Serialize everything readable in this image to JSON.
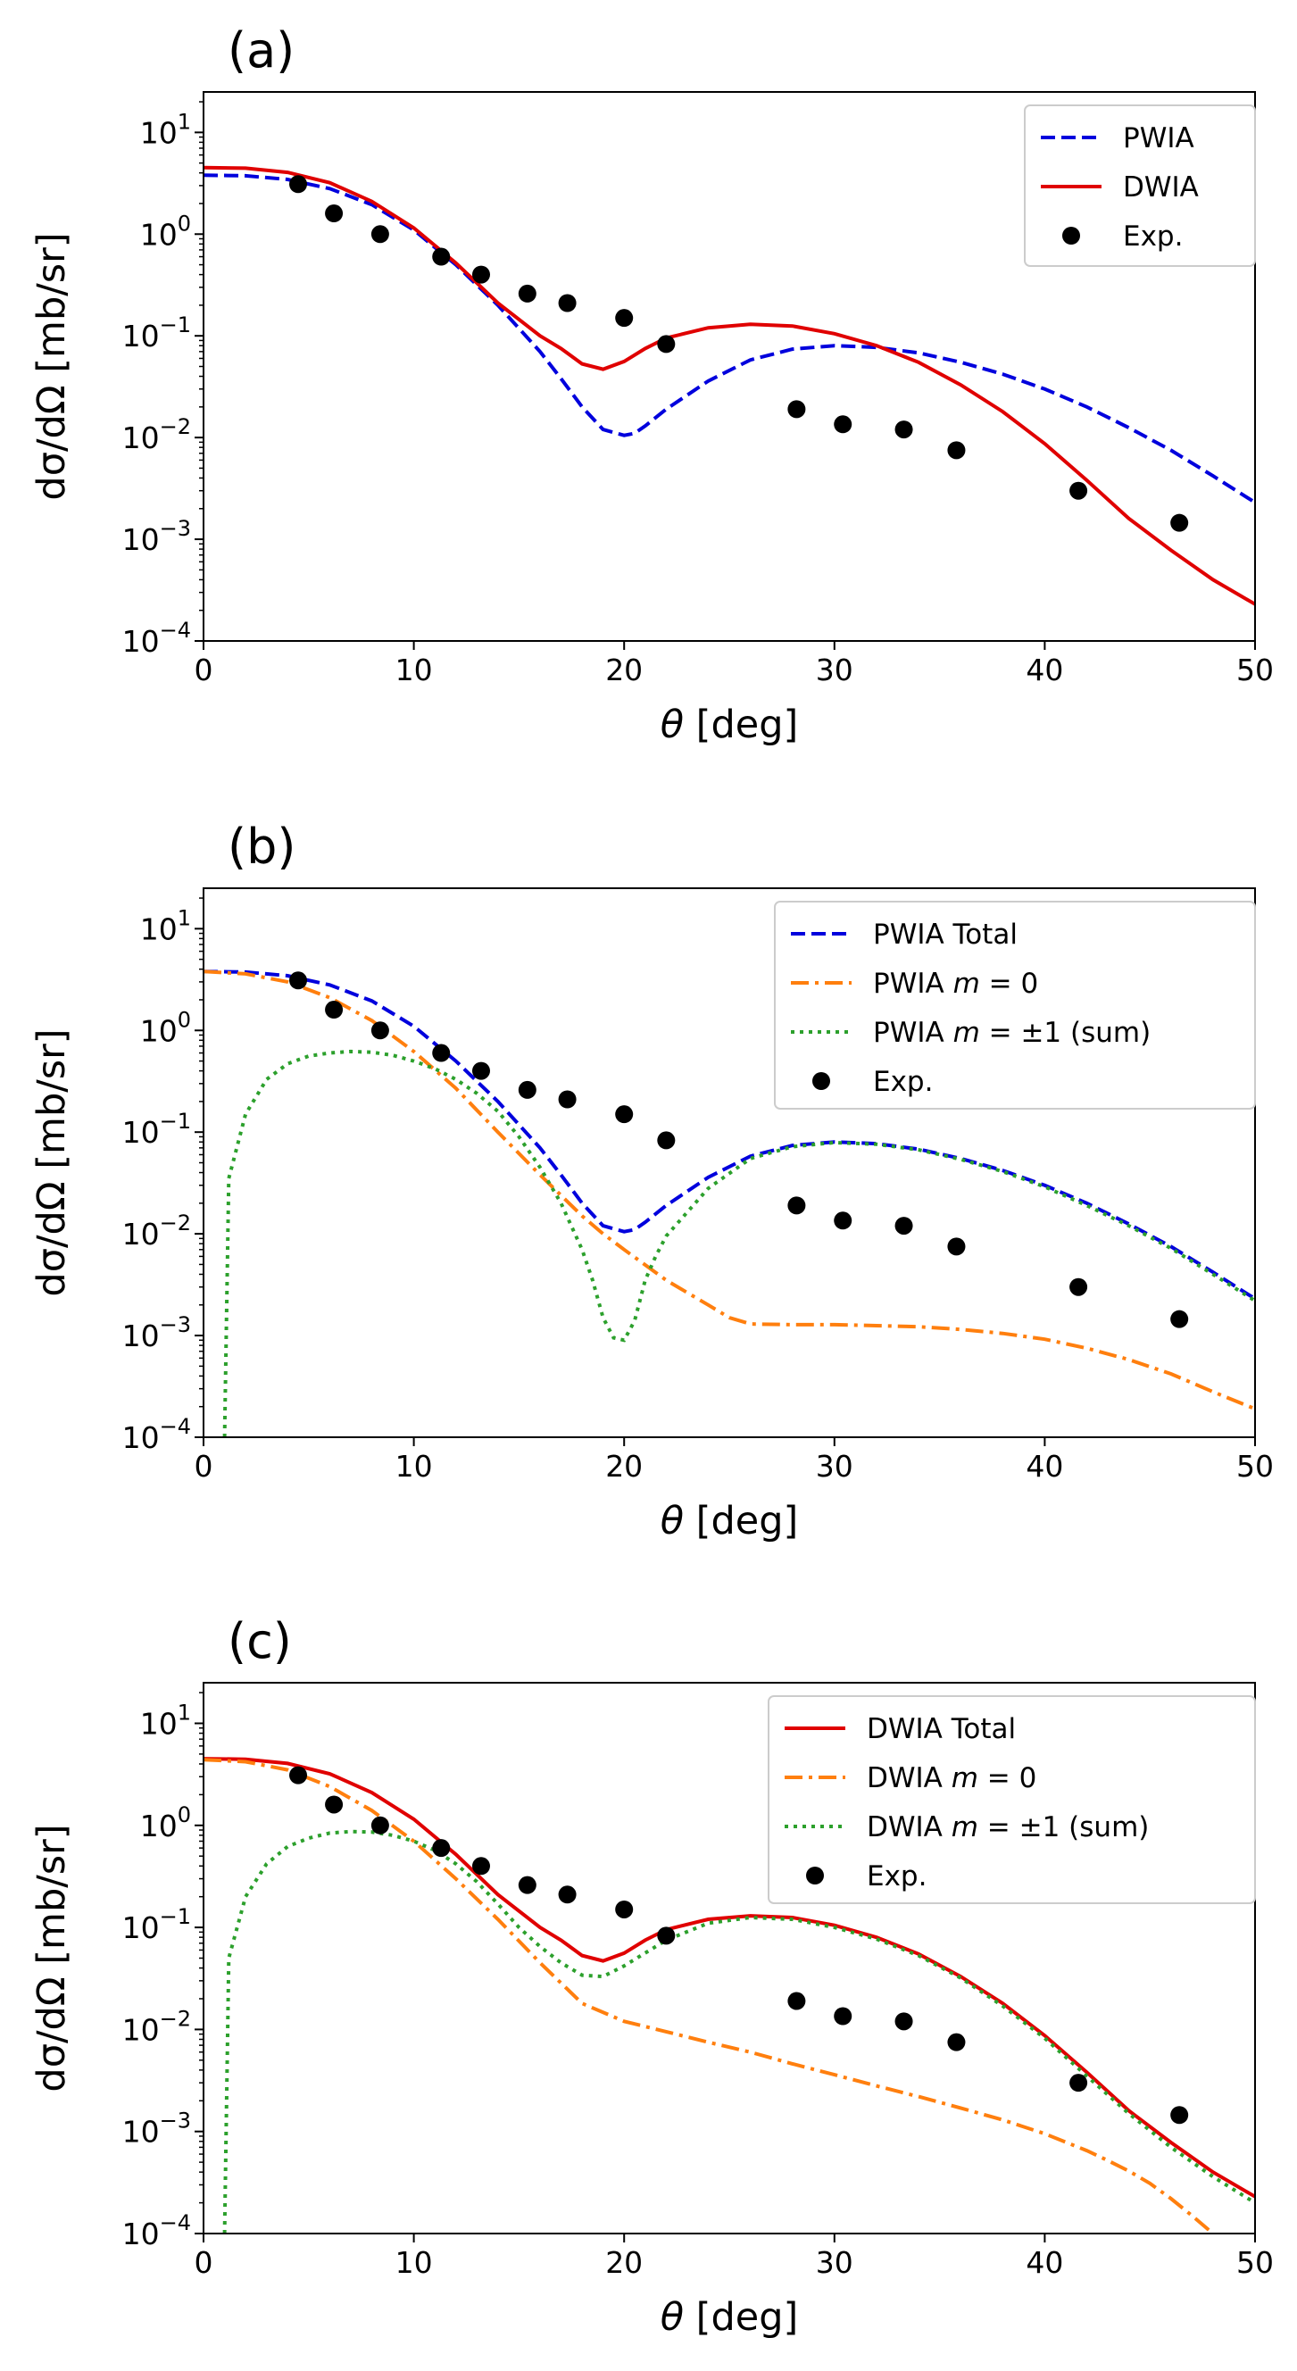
{
  "colors": {
    "pwia": "#0000dd",
    "dwia": "#e00000",
    "m0": "#ff7f0e",
    "m1": "#2ca02c",
    "exp": "#000000"
  },
  "chart_data": [
    {
      "type": "line",
      "panel_label": "(a)",
      "xlabel_var": "θ",
      "xlabel_unit": " [deg]",
      "ylabel": "dσ/dΩ [mb/sr]",
      "xlim": [
        0,
        50
      ],
      "ylim": [
        0.0001,
        25
      ],
      "yscale": "log",
      "xticks": [
        0,
        10,
        20,
        30,
        40,
        50
      ],
      "yticks": [
        {
          "base": "10",
          "exp": "1",
          "value": 10
        },
        {
          "base": "10",
          "exp": "0",
          "value": 1
        },
        {
          "base": "10",
          "exp": "−1",
          "value": 0.1
        },
        {
          "base": "10",
          "exp": "−2",
          "value": 0.01
        },
        {
          "base": "10",
          "exp": "−3",
          "value": 0.001
        },
        {
          "base": "10",
          "exp": "−4",
          "value": 0.0001
        }
      ],
      "legend_position": "top-right",
      "series": [
        {
          "name": "PWIA",
          "label_prefix": "PWIA",
          "label_math": "",
          "label_suffix": "",
          "style": "dashed",
          "color_key": "pwia",
          "x": [
            0,
            2,
            4,
            6,
            8,
            10,
            12,
            14,
            16,
            17,
            18,
            19,
            20,
            20.5,
            21,
            22,
            24,
            26,
            28,
            30,
            32,
            34,
            36,
            38,
            40,
            42,
            44,
            46,
            48,
            50
          ],
          "y": [
            3.8,
            3.75,
            3.45,
            2.8,
            1.95,
            1.1,
            0.5,
            0.2,
            0.07,
            0.038,
            0.02,
            0.012,
            0.0105,
            0.011,
            0.013,
            0.019,
            0.036,
            0.058,
            0.074,
            0.08,
            0.077,
            0.068,
            0.055,
            0.042,
            0.03,
            0.02,
            0.0125,
            0.0075,
            0.0042,
            0.0023
          ]
        },
        {
          "name": "DWIA",
          "label_prefix": "DWIA",
          "label_math": "",
          "label_suffix": "",
          "style": "solid",
          "color_key": "dwia",
          "x": [
            0,
            2,
            4,
            6,
            8,
            10,
            12,
            14,
            16,
            17,
            18,
            19,
            20,
            21,
            22,
            24,
            26,
            28,
            30,
            32,
            34,
            36,
            38,
            40,
            42,
            44,
            46,
            48,
            50
          ],
          "y": [
            4.5,
            4.45,
            4.05,
            3.2,
            2.1,
            1.15,
            0.52,
            0.21,
            0.1,
            0.075,
            0.053,
            0.047,
            0.056,
            0.075,
            0.095,
            0.12,
            0.13,
            0.125,
            0.105,
            0.08,
            0.055,
            0.033,
            0.018,
            0.0087,
            0.0038,
            0.0016,
            0.00078,
            0.0004,
            0.00023
          ]
        }
      ],
      "exp": {
        "name": "Exp.",
        "x": [
          4.5,
          6.2,
          8.4,
          11.3,
          13.2,
          15.4,
          17.3,
          20.0,
          22.0,
          28.2,
          30.4,
          33.3,
          35.8,
          41.6,
          46.4
        ],
        "y": [
          3.1,
          1.6,
          1.0,
          0.6,
          0.4,
          0.26,
          0.21,
          0.15,
          0.083,
          0.019,
          0.0135,
          0.012,
          0.0075,
          0.003,
          0.00145
        ]
      }
    },
    {
      "type": "line",
      "panel_label": "(b)",
      "xlabel_var": "θ",
      "xlabel_unit": " [deg]",
      "ylabel": "dσ/dΩ [mb/sr]",
      "xlim": [
        0,
        50
      ],
      "ylim": [
        0.0001,
        25
      ],
      "yscale": "log",
      "xticks": [
        0,
        10,
        20,
        30,
        40,
        50
      ],
      "yticks": [
        {
          "base": "10",
          "exp": "1",
          "value": 10
        },
        {
          "base": "10",
          "exp": "0",
          "value": 1
        },
        {
          "base": "10",
          "exp": "−1",
          "value": 0.1
        },
        {
          "base": "10",
          "exp": "−2",
          "value": 0.01
        },
        {
          "base": "10",
          "exp": "−3",
          "value": 0.001
        },
        {
          "base": "10",
          "exp": "−4",
          "value": 0.0001
        }
      ],
      "legend_position": "top-right",
      "series": [
        {
          "name": "PWIA Total",
          "label_prefix": "PWIA Total",
          "label_math": "",
          "label_suffix": "",
          "style": "dashed",
          "color_key": "pwia",
          "x": [
            0,
            2,
            4,
            6,
            8,
            10,
            12,
            14,
            16,
            17,
            18,
            19,
            20,
            20.5,
            21,
            22,
            24,
            26,
            28,
            30,
            32,
            34,
            36,
            38,
            40,
            42,
            44,
            46,
            48,
            50
          ],
          "y": [
            3.8,
            3.75,
            3.45,
            2.8,
            1.95,
            1.1,
            0.5,
            0.2,
            0.07,
            0.038,
            0.02,
            0.012,
            0.0105,
            0.011,
            0.013,
            0.019,
            0.036,
            0.058,
            0.074,
            0.08,
            0.077,
            0.068,
            0.055,
            0.042,
            0.03,
            0.02,
            0.0125,
            0.0075,
            0.0042,
            0.0023
          ]
        },
        {
          "name": "PWIA m = 0",
          "label_prefix": "PWIA ",
          "label_math": "m",
          "label_suffix": " = 0",
          "style": "dashdot",
          "color_key": "m0",
          "x": [
            0,
            2,
            4,
            6,
            8,
            10,
            12,
            14,
            16,
            18,
            19,
            20,
            22,
            24,
            25,
            26,
            28,
            30,
            32,
            34,
            36,
            38,
            40,
            42,
            44,
            46,
            48,
            50
          ],
          "y": [
            3.8,
            3.6,
            3.0,
            2.1,
            1.25,
            0.62,
            0.27,
            0.1,
            0.038,
            0.015,
            0.01,
            0.007,
            0.0035,
            0.002,
            0.0015,
            0.0013,
            0.00128,
            0.00128,
            0.00125,
            0.00122,
            0.00115,
            0.00105,
            0.00092,
            0.00075,
            0.00058,
            0.00042,
            0.00028,
            0.00019
          ]
        },
        {
          "name": "PWIA m = ±1 (sum)",
          "label_prefix": "PWIA ",
          "label_math": "m",
          "label_suffix": " = ±1 (sum)",
          "style": "dotted",
          "color_key": "m1",
          "x": [
            1,
            1.2,
            2,
            3,
            4,
            5,
            6,
            7,
            8,
            9,
            10,
            11,
            12,
            13,
            14,
            15,
            16,
            17,
            18,
            18.5,
            19,
            19.5,
            20,
            20.5,
            21,
            21.5,
            22,
            24,
            26,
            28,
            30,
            32,
            34,
            36,
            38,
            40,
            42,
            44,
            46,
            48,
            50
          ],
          "y": [
            0.0001,
            0.035,
            0.15,
            0.33,
            0.47,
            0.56,
            0.6,
            0.62,
            0.61,
            0.57,
            0.5,
            0.42,
            0.33,
            0.24,
            0.16,
            0.09,
            0.045,
            0.02,
            0.007,
            0.0035,
            0.0015,
            0.00095,
            0.0009,
            0.0014,
            0.0035,
            0.006,
            0.0095,
            0.028,
            0.055,
            0.072,
            0.079,
            0.076,
            0.067,
            0.054,
            0.041,
            0.029,
            0.019,
            0.012,
            0.0072,
            0.004,
            0.0022
          ]
        }
      ],
      "exp": {
        "name": "Exp.",
        "x": [
          4.5,
          6.2,
          8.4,
          11.3,
          13.2,
          15.4,
          17.3,
          20.0,
          22.0,
          28.2,
          30.4,
          33.3,
          35.8,
          41.6,
          46.4
        ],
        "y": [
          3.1,
          1.6,
          1.0,
          0.6,
          0.4,
          0.26,
          0.21,
          0.15,
          0.083,
          0.019,
          0.0135,
          0.012,
          0.0075,
          0.003,
          0.00145
        ]
      }
    },
    {
      "type": "line",
      "panel_label": "(c)",
      "xlabel_var": "θ",
      "xlabel_unit": " [deg]",
      "ylabel": "dσ/dΩ [mb/sr]",
      "xlim": [
        0,
        50
      ],
      "ylim": [
        0.0001,
        25
      ],
      "yscale": "log",
      "xticks": [
        0,
        10,
        20,
        30,
        40,
        50
      ],
      "yticks": [
        {
          "base": "10",
          "exp": "1",
          "value": 10
        },
        {
          "base": "10",
          "exp": "0",
          "value": 1
        },
        {
          "base": "10",
          "exp": "−1",
          "value": 0.1
        },
        {
          "base": "10",
          "exp": "−2",
          "value": 0.01
        },
        {
          "base": "10",
          "exp": "−3",
          "value": 0.001
        },
        {
          "base": "10",
          "exp": "−4",
          "value": 0.0001
        }
      ],
      "legend_position": "top-right",
      "series": [
        {
          "name": "DWIA Total",
          "label_prefix": "DWIA Total",
          "label_math": "",
          "label_suffix": "",
          "style": "solid",
          "color_key": "dwia",
          "x": [
            0,
            2,
            4,
            6,
            8,
            10,
            12,
            14,
            16,
            17,
            18,
            19,
            20,
            21,
            22,
            24,
            26,
            28,
            30,
            32,
            34,
            36,
            38,
            40,
            42,
            44,
            46,
            48,
            50
          ],
          "y": [
            4.5,
            4.45,
            4.05,
            3.2,
            2.1,
            1.15,
            0.52,
            0.21,
            0.1,
            0.075,
            0.053,
            0.047,
            0.056,
            0.075,
            0.095,
            0.12,
            0.13,
            0.125,
            0.105,
            0.08,
            0.055,
            0.033,
            0.018,
            0.0087,
            0.0038,
            0.0016,
            0.00078,
            0.0004,
            0.00023
          ]
        },
        {
          "name": "DWIA m = 0",
          "label_prefix": "DWIA ",
          "label_math": "m",
          "label_suffix": " = 0",
          "style": "dashdot",
          "color_key": "m0",
          "x": [
            0,
            2,
            4,
            6,
            8,
            10,
            12,
            14,
            16,
            18,
            20,
            22,
            24,
            26,
            28,
            30,
            32,
            34,
            36,
            38,
            40,
            42,
            43,
            44,
            45,
            46,
            47,
            48
          ],
          "y": [
            4.4,
            4.2,
            3.5,
            2.4,
            1.4,
            0.7,
            0.3,
            0.12,
            0.045,
            0.018,
            0.012,
            0.0095,
            0.0075,
            0.006,
            0.0046,
            0.0036,
            0.0028,
            0.0022,
            0.0017,
            0.0013,
            0.00095,
            0.00065,
            0.00052,
            0.00041,
            0.00031,
            0.00022,
            0.00015,
            0.0001
          ]
        },
        {
          "name": "DWIA m = ±1 (sum)",
          "label_prefix": "DWIA ",
          "label_math": "m",
          "label_suffix": " = ±1 (sum)",
          "style": "dotted",
          "color_key": "m1",
          "x": [
            1,
            1.2,
            2,
            3,
            4,
            5,
            6,
            7,
            8,
            9,
            10,
            11,
            12,
            13,
            14,
            15,
            16,
            17,
            18,
            19,
            20,
            22,
            24,
            26,
            28,
            30,
            32,
            34,
            36,
            38,
            40,
            42,
            44,
            46,
            48,
            50
          ],
          "y": [
            0.0001,
            0.05,
            0.2,
            0.42,
            0.62,
            0.75,
            0.84,
            0.87,
            0.86,
            0.8,
            0.7,
            0.57,
            0.42,
            0.28,
            0.17,
            0.1,
            0.065,
            0.045,
            0.034,
            0.033,
            0.042,
            0.075,
            0.11,
            0.125,
            0.12,
            0.1,
            0.077,
            0.053,
            0.032,
            0.017,
            0.0082,
            0.0035,
            0.0015,
            0.0007,
            0.00036,
            0.0002
          ]
        }
      ],
      "exp": {
        "name": "Exp.",
        "x": [
          4.5,
          6.2,
          8.4,
          11.3,
          13.2,
          15.4,
          17.3,
          20.0,
          22.0,
          28.2,
          30.4,
          33.3,
          35.8,
          41.6,
          46.4
        ],
        "y": [
          3.1,
          1.6,
          1.0,
          0.6,
          0.4,
          0.26,
          0.21,
          0.15,
          0.083,
          0.019,
          0.0135,
          0.012,
          0.0075,
          0.003,
          0.00145
        ]
      }
    }
  ]
}
